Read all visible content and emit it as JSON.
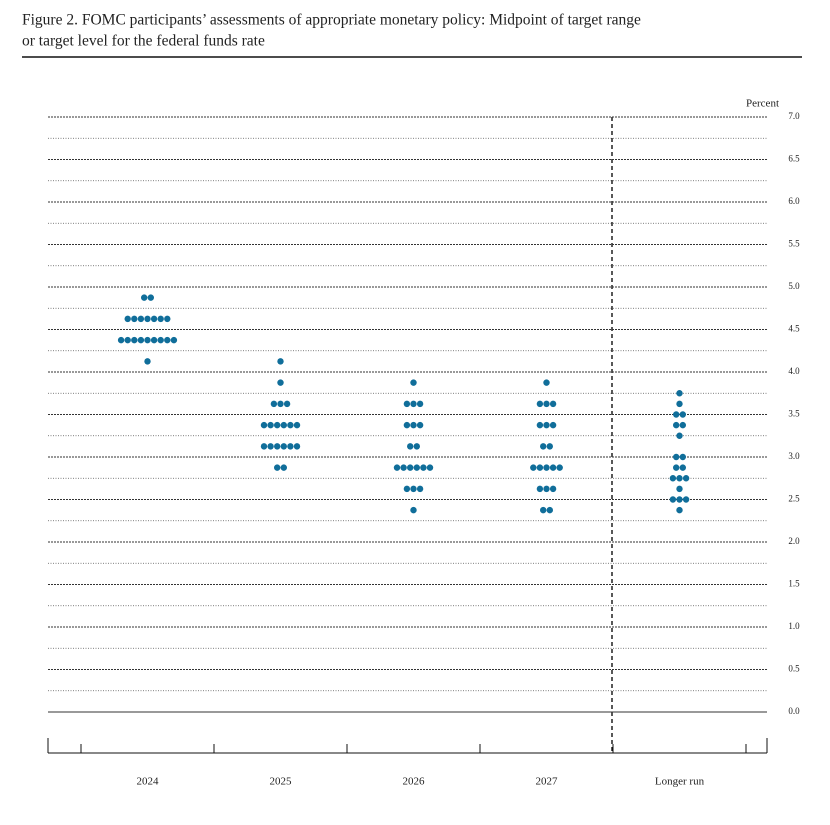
{
  "chart_data": {
    "type": "dot",
    "title": "Figure 2.  FOMC participants’ assessments of appropriate monetary policy:  Midpoint of target range",
    "subtitle": "or target level for the federal funds rate",
    "y_label": "Percent",
    "color": "#106e9a",
    "categories": [
      "2024",
      "2025",
      "2026",
      "2027",
      "Longer run"
    ],
    "dots": [
      {
        "values": [
          4.875,
          4.625,
          4.375,
          4.125
        ],
        "counts": [
          2,
          7,
          9,
          1
        ]
      },
      {
        "values": [
          4.125,
          3.875,
          3.625,
          3.375,
          3.125,
          2.875
        ],
        "counts": [
          1,
          1,
          3,
          6,
          6,
          2
        ]
      },
      {
        "values": [
          3.875,
          3.625,
          3.375,
          3.125,
          2.875,
          2.625,
          2.375
        ],
        "counts": [
          1,
          3,
          3,
          2,
          6,
          3,
          1
        ]
      },
      {
        "values": [
          3.875,
          3.625,
          3.375,
          3.125,
          2.875,
          2.625,
          2.375
        ],
        "counts": [
          1,
          3,
          3,
          2,
          5,
          3,
          2
        ]
      },
      {
        "values": [
          3.75,
          3.625,
          3.5,
          3.375,
          3.25,
          3.0,
          2.875,
          2.75,
          2.625,
          2.5,
          2.375
        ],
        "counts": [
          1,
          1,
          2,
          2,
          1,
          2,
          2,
          3,
          1,
          3,
          1
        ]
      }
    ],
    "ylim": [
      0,
      7
    ],
    "yticks": [
      {
        "value": 0,
        "label": "0.0"
      },
      {
        "value": 0.5,
        "label": "0.5"
      },
      {
        "value": 1,
        "label": "1.0"
      },
      {
        "value": 1.5,
        "label": "1.5"
      },
      {
        "value": 2,
        "label": "2.0"
      },
      {
        "value": 2.5,
        "label": "2.5"
      },
      {
        "value": 3,
        "label": "3.0"
      },
      {
        "value": 3.5,
        "label": "3.5"
      },
      {
        "value": 4,
        "label": "4.0"
      },
      {
        "value": 4.5,
        "label": "4.5"
      },
      {
        "value": 5,
        "label": "5.0"
      },
      {
        "value": 5.5,
        "label": "5.5"
      },
      {
        "value": 6,
        "label": "6.0"
      },
      {
        "value": 6.5,
        "label": "6.5"
      },
      {
        "value": 7,
        "label": "7.0"
      }
    ],
    "yminorticks": [
      0.25,
      0.75,
      1.25,
      1.75,
      2.25,
      2.75,
      3.25,
      3.75,
      4.25,
      4.75,
      5.25,
      5.75,
      6.25,
      6.75
    ],
    "grid": true
  }
}
